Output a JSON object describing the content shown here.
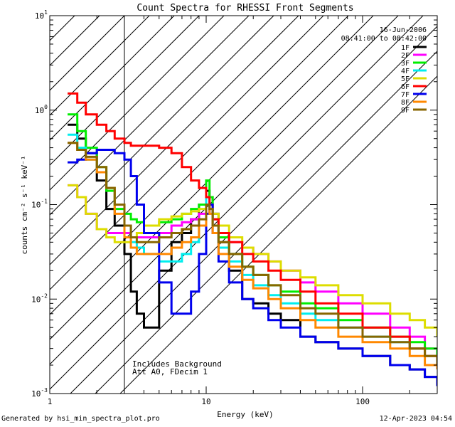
{
  "chart_data": {
    "type": "line",
    "title": "Count Spectra for RHESSI Front Segments",
    "xlabel": "Energy (keV)",
    "ylabel": "counts cm⁻² s⁻¹ keV⁻¹",
    "xscale": "log",
    "yscale": "log",
    "xlim": [
      1,
      300
    ],
    "ylim": [
      0.001,
      10
    ],
    "x_major_ticks": [
      1,
      10,
      100
    ],
    "x_tick_labels": [
      "1",
      "10",
      "100"
    ],
    "y_major_ticks": [
      0.001,
      0.01,
      0.1,
      1,
      10
    ],
    "y_tick_labels": [
      {
        "base": "10",
        "exp": "-3"
      },
      {
        "base": "10",
        "exp": "-2"
      },
      {
        "base": "10",
        "exp": "-1"
      },
      {
        "base": "10",
        "exp": "0"
      },
      {
        "base": "10",
        "exp": "1"
      }
    ],
    "excluded_region": {
      "x_from": 1,
      "x_to": 3,
      "style": "hatched"
    },
    "header_lines": [
      "16-Jun-2006",
      "08:41:00 to 08:42:00"
    ],
    "annotations": [
      "Includes Background",
      "Att A0, FDecim 1"
    ],
    "legend_position": "top-right",
    "series": [
      {
        "name": "1F",
        "color": "#000000",
        "x": [
          1.3,
          1.5,
          1.7,
          2,
          2.3,
          2.6,
          3,
          3.3,
          3.6,
          4,
          5,
          6,
          7,
          8,
          9,
          10,
          10.5,
          11,
          12,
          14,
          17,
          20,
          25,
          30,
          40,
          50,
          70,
          100,
          150,
          200,
          250,
          300
        ],
        "y": [
          0.7,
          0.5,
          0.35,
          0.18,
          0.09,
          0.06,
          0.03,
          0.012,
          0.007,
          0.005,
          0.02,
          0.04,
          0.05,
          0.07,
          0.1,
          0.14,
          0.12,
          0.08,
          0.04,
          0.02,
          0.01,
          0.009,
          0.007,
          0.006,
          0.004,
          0.0035,
          0.003,
          0.0025,
          0.002,
          0.0018,
          0.0015,
          0.0012
        ]
      },
      {
        "name": "2F",
        "color": "#ff00ff",
        "x": [
          1.3,
          1.5,
          1.7,
          2,
          2.3,
          2.6,
          3,
          3.3,
          3.6,
          4,
          5,
          6,
          7,
          8,
          9,
          10,
          10.5,
          11,
          12,
          14,
          17,
          20,
          25,
          30,
          40,
          50,
          70,
          100,
          150,
          200,
          250,
          300
        ],
        "y": [
          0.16,
          0.12,
          0.08,
          0.055,
          0.05,
          0.05,
          0.05,
          0.045,
          0.045,
          0.045,
          0.05,
          0.06,
          0.065,
          0.07,
          0.08,
          0.12,
          0.1,
          0.07,
          0.05,
          0.04,
          0.035,
          0.03,
          0.025,
          0.02,
          0.015,
          0.012,
          0.009,
          0.007,
          0.005,
          0.004,
          0.003,
          0.0025
        ]
      },
      {
        "name": "3F",
        "color": "#00ee00",
        "x": [
          1.3,
          1.5,
          1.7,
          2,
          2.3,
          2.6,
          3,
          3.3,
          3.6,
          4,
          5,
          6,
          7,
          8,
          9,
          10,
          10.5,
          11,
          12,
          14,
          17,
          20,
          25,
          30,
          40,
          50,
          70,
          100,
          150,
          200,
          250,
          300
        ],
        "y": [
          0.9,
          0.6,
          0.4,
          0.25,
          0.14,
          0.09,
          0.08,
          0.07,
          0.065,
          0.06,
          0.065,
          0.07,
          0.08,
          0.09,
          0.1,
          0.18,
          0.12,
          0.07,
          0.045,
          0.03,
          0.022,
          0.018,
          0.014,
          0.012,
          0.009,
          0.008,
          0.006,
          0.005,
          0.004,
          0.0035,
          0.003,
          0.0025
        ]
      },
      {
        "name": "4F",
        "color": "#00eeee",
        "x": [
          1.3,
          1.5,
          1.7,
          2,
          2.3,
          2.6,
          3,
          3.3,
          3.6,
          4,
          5,
          6,
          7,
          8,
          9,
          10,
          10.5,
          11,
          12,
          14,
          17,
          20,
          25,
          30,
          40,
          50,
          70,
          100,
          150,
          200,
          250,
          300
        ],
        "y": [
          0.55,
          0.4,
          0.3,
          0.22,
          0.15,
          0.1,
          0.06,
          0.04,
          0.035,
          0.03,
          0.025,
          0.025,
          0.03,
          0.04,
          0.06,
          0.12,
          0.1,
          0.06,
          0.035,
          0.025,
          0.018,
          0.014,
          0.011,
          0.009,
          0.007,
          0.006,
          0.005,
          0.004,
          0.0035,
          0.003,
          0.0025,
          0.002
        ]
      },
      {
        "name": "5F",
        "color": "#dddd00",
        "x": [
          1.3,
          1.5,
          1.7,
          2,
          2.3,
          2.6,
          3,
          3.3,
          3.6,
          4,
          5,
          6,
          7,
          8,
          9,
          10,
          10.5,
          11,
          12,
          14,
          17,
          20,
          25,
          30,
          40,
          50,
          70,
          100,
          150,
          200,
          250,
          300
        ],
        "y": [
          0.16,
          0.12,
          0.08,
          0.055,
          0.045,
          0.04,
          0.04,
          0.045,
          0.05,
          0.06,
          0.07,
          0.075,
          0.08,
          0.085,
          0.09,
          0.1,
          0.1,
          0.08,
          0.06,
          0.045,
          0.035,
          0.03,
          0.025,
          0.02,
          0.017,
          0.014,
          0.011,
          0.009,
          0.007,
          0.006,
          0.005,
          0.004
        ]
      },
      {
        "name": "6F",
        "color": "#ff0000",
        "x": [
          1.3,
          1.5,
          1.7,
          2,
          2.3,
          2.6,
          3,
          3.3,
          3.6,
          4,
          5,
          6,
          7,
          8,
          9,
          10,
          10.5,
          11,
          12,
          14,
          17,
          20,
          25,
          30,
          40,
          50,
          70,
          100,
          150,
          200,
          250,
          300
        ],
        "y": [
          1.5,
          1.2,
          0.9,
          0.7,
          0.6,
          0.5,
          0.45,
          0.42,
          0.42,
          0.42,
          0.4,
          0.35,
          0.25,
          0.18,
          0.15,
          0.12,
          0.1,
          0.07,
          0.05,
          0.04,
          0.03,
          0.025,
          0.02,
          0.016,
          0.012,
          0.009,
          0.007,
          0.005,
          0.004,
          0.003,
          0.0025,
          0.002
        ]
      },
      {
        "name": "7F",
        "color": "#0000ee",
        "x": [
          1.3,
          1.5,
          1.7,
          2,
          2.3,
          2.6,
          3,
          3.3,
          3.6,
          4,
          5,
          6,
          7,
          8,
          9,
          10,
          10.5,
          11,
          12,
          14,
          17,
          20,
          25,
          30,
          40,
          50,
          70,
          100,
          150,
          200,
          250,
          300
        ],
        "y": [
          0.28,
          0.3,
          0.35,
          0.38,
          0.38,
          0.35,
          0.3,
          0.2,
          0.1,
          0.05,
          0.015,
          0.007,
          0.007,
          0.012,
          0.03,
          0.08,
          0.1,
          0.05,
          0.025,
          0.015,
          0.01,
          0.008,
          0.006,
          0.005,
          0.004,
          0.0035,
          0.003,
          0.0025,
          0.002,
          0.0018,
          0.0015,
          0.0012
        ]
      },
      {
        "name": "8F",
        "color": "#ff8800",
        "x": [
          1.3,
          1.5,
          1.7,
          2,
          2.3,
          2.6,
          3,
          3.3,
          3.6,
          4,
          5,
          6,
          7,
          8,
          9,
          10,
          10.5,
          11,
          12,
          14,
          17,
          20,
          25,
          30,
          40,
          50,
          70,
          100,
          150,
          200,
          250,
          300
        ],
        "y": [
          0.45,
          0.38,
          0.3,
          0.22,
          0.15,
          0.08,
          0.045,
          0.035,
          0.03,
          0.03,
          0.03,
          0.035,
          0.04,
          0.045,
          0.06,
          0.1,
          0.08,
          0.05,
          0.03,
          0.022,
          0.016,
          0.013,
          0.01,
          0.008,
          0.006,
          0.005,
          0.004,
          0.0035,
          0.003,
          0.0025,
          0.002,
          0.0018
        ]
      },
      {
        "name": "9F",
        "color": "#886600",
        "x": [
          1.3,
          1.5,
          1.7,
          2,
          2.3,
          2.6,
          3,
          3.3,
          3.6,
          4,
          5,
          6,
          7,
          8,
          9,
          10,
          10.5,
          11,
          12,
          14,
          17,
          20,
          25,
          30,
          40,
          50,
          70,
          100,
          150,
          200,
          250,
          300
        ],
        "y": [
          0.45,
          0.38,
          0.32,
          0.25,
          0.15,
          0.1,
          0.06,
          0.045,
          0.04,
          0.04,
          0.045,
          0.05,
          0.055,
          0.06,
          0.07,
          0.1,
          0.09,
          0.06,
          0.04,
          0.03,
          0.022,
          0.018,
          0.014,
          0.011,
          0.008,
          0.007,
          0.005,
          0.004,
          0.0035,
          0.003,
          0.0025,
          0.002
        ]
      }
    ]
  },
  "footer": {
    "generated_by": "Generated by hsi_min_spectra_plot.pro",
    "timestamp": "12-Apr-2023 04:54"
  }
}
